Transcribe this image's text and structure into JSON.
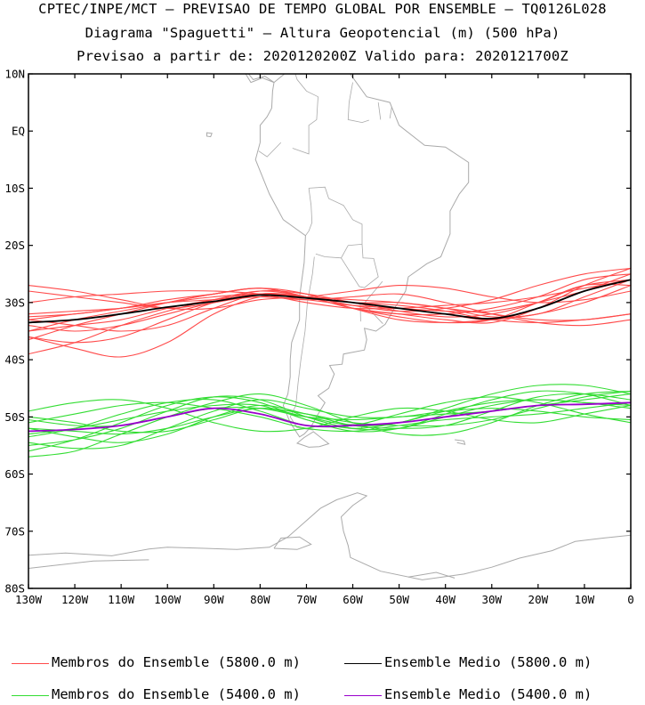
{
  "titles": {
    "line1": "CPTEC/INPE/MCT — PREVISAO DE TEMPO GLOBAL POR ENSEMBLE — TQ0126L028",
    "line2": "Diagrama \"Spaguetti\" — Altura Geopotencial (m) (500 hPa)",
    "line3": "Previsao a partir de: 2020120200Z  Valido para: 2020121700Z"
  },
  "legend": {
    "members_5800": "Membros do Ensemble (5800.0 m)",
    "mean_5800": "Ensemble Medio (5800.0 m)",
    "members_5400": "Membros do Ensemble (5400.0 m)",
    "mean_5400": "Ensemble Medio (5400.0 m)"
  },
  "colors": {
    "members_5800": "#ff4a4a",
    "mean_5800": "#000000",
    "members_5400": "#33dd33",
    "mean_5400": "#9900cc",
    "coastline": "#aaaaaa"
  },
  "chart_data": {
    "type": "line",
    "map": "South America / South Atlantic",
    "xlim": [
      -130,
      0
    ],
    "ylim": [
      -80,
      10
    ],
    "x_ticks": [
      {
        "v": -130,
        "label": "130W"
      },
      {
        "v": -120,
        "label": "120W"
      },
      {
        "v": -110,
        "label": "110W"
      },
      {
        "v": -100,
        "label": "100W"
      },
      {
        "v": -90,
        "label": "90W"
      },
      {
        "v": -80,
        "label": "80W"
      },
      {
        "v": -70,
        "label": "70W"
      },
      {
        "v": -60,
        "label": "60W"
      },
      {
        "v": -50,
        "label": "50W"
      },
      {
        "v": -40,
        "label": "40W"
      },
      {
        "v": -30,
        "label": "30W"
      },
      {
        "v": -20,
        "label": "20W"
      },
      {
        "v": -10,
        "label": "10W"
      },
      {
        "v": 0,
        "label": "0"
      }
    ],
    "y_ticks": [
      {
        "v": 10,
        "label": "10N"
      },
      {
        "v": 0,
        "label": "EQ"
      },
      {
        "v": -10,
        "label": "10S"
      },
      {
        "v": -20,
        "label": "20S"
      },
      {
        "v": -30,
        "label": "30S"
      },
      {
        "v": -40,
        "label": "40S"
      },
      {
        "v": -50,
        "label": "50S"
      },
      {
        "v": -60,
        "label": "60S"
      },
      {
        "v": -70,
        "label": "70S"
      },
      {
        "v": -80,
        "label": "80S"
      }
    ],
    "x": [
      -130,
      -120,
      -110,
      -100,
      -90,
      -80,
      -70,
      -60,
      -50,
      -40,
      -30,
      -20,
      -10,
      0
    ],
    "series": [
      {
        "name": "Ensemble Medio (5800.0 m)",
        "group": "mean_5800",
        "values": [
          -33.5,
          -33,
          -32,
          -30.8,
          -29.8,
          -28.7,
          -29.2,
          -30,
          -31,
          -32,
          -32.8,
          -31,
          -28,
          -26
        ]
      },
      {
        "name": "Ensemble Medio (5400.0 m)",
        "group": "mean_5400",
        "values": [
          -52.5,
          -52.2,
          -51.5,
          -50,
          -48.5,
          -49.5,
          -51.5,
          -51.5,
          -51,
          -50,
          -49,
          -48,
          -47.8,
          -47.5
        ]
      },
      {
        "group": "members_5800",
        "values": [
          -32,
          -31.5,
          -31,
          -30,
          -29,
          -28.5,
          -29,
          -30,
          -31,
          -32,
          -33,
          -31,
          -28,
          -25
        ]
      },
      {
        "group": "members_5800",
        "values": [
          -35,
          -34,
          -33,
          -31,
          -29.5,
          -28.5,
          -29,
          -31,
          -32,
          -33,
          -33.5,
          -31,
          -27,
          -24
        ]
      },
      {
        "group": "members_5800",
        "values": [
          -36,
          -37,
          -36,
          -33,
          -30,
          -28,
          -28.5,
          -30,
          -31.5,
          -32.5,
          -32,
          -30,
          -27,
          -26
        ]
      },
      {
        "group": "members_5800",
        "values": [
          -28,
          -29,
          -30,
          -31,
          -30,
          -28.5,
          -29,
          -29.5,
          -30,
          -31,
          -32,
          -33,
          -33,
          -32
        ]
      },
      {
        "group": "members_5800",
        "values": [
          -39,
          -37,
          -34,
          -31.5,
          -29.5,
          -28,
          -29,
          -31,
          -32,
          -32,
          -31,
          -29,
          -26,
          -25
        ]
      },
      {
        "group": "members_5800",
        "values": [
          -33,
          -32,
          -31,
          -29.5,
          -28.5,
          -27.5,
          -29,
          -31,
          -32.5,
          -33.5,
          -33,
          -30,
          -27,
          -27
        ]
      },
      {
        "group": "members_5800",
        "values": [
          -36,
          -38,
          -39.5,
          -37,
          -32,
          -29,
          -29,
          -30,
          -30.5,
          -31.5,
          -33,
          -33.5,
          -33,
          -32
        ]
      },
      {
        "group": "members_5800",
        "values": [
          -30,
          -29,
          -28.5,
          -28,
          -28,
          -28.5,
          -30,
          -31,
          -31,
          -30.5,
          -30,
          -29,
          -27.5,
          -26
        ]
      },
      {
        "group": "members_5800",
        "values": [
          -35,
          -33,
          -31.5,
          -30,
          -28.5,
          -27.5,
          -29,
          -30,
          -30,
          -31,
          -32.5,
          -32,
          -29,
          -26
        ]
      },
      {
        "group": "members_5800",
        "values": [
          -34,
          -35,
          -34,
          -32,
          -30,
          -29,
          -29.5,
          -30.5,
          -31,
          -31.5,
          -31.5,
          -30,
          -28,
          -26
        ]
      },
      {
        "group": "members_5800",
        "values": [
          -27,
          -28,
          -29.5,
          -31,
          -31,
          -29.5,
          -29,
          -28,
          -27,
          -27.5,
          -29,
          -30,
          -29.5,
          -28
        ]
      },
      {
        "group": "members_5800",
        "values": [
          -36.5,
          -34,
          -32,
          -30,
          -28.5,
          -27.5,
          -28.5,
          -31,
          -33,
          -33.5,
          -33,
          -32,
          -30,
          -27
        ]
      },
      {
        "group": "members_5800",
        "values": [
          -32.5,
          -32,
          -31,
          -30,
          -29.5,
          -29,
          -29.5,
          -29,
          -28.5,
          -30,
          -32,
          -33.5,
          -34,
          -33
        ]
      },
      {
        "group": "members_5800",
        "values": [
          -33,
          -34,
          -35,
          -34,
          -31,
          -28.5,
          -29,
          -30.5,
          -31.5,
          -31,
          -29.5,
          -27,
          -25,
          -24
        ]
      },
      {
        "group": "members_5400",
        "values": [
          -55,
          -54,
          -52,
          -49,
          -46.5,
          -47,
          -50,
          -52,
          -52,
          -50,
          -48,
          -47,
          -47.5,
          -48
        ]
      },
      {
        "group": "members_5400",
        "values": [
          -52,
          -53.5,
          -54.5,
          -53,
          -50,
          -48,
          -49.5,
          -51.5,
          -52,
          -51.5,
          -49,
          -46.5,
          -46,
          -47
        ]
      },
      {
        "group": "members_5400",
        "values": [
          -49,
          -47.5,
          -47,
          -48.5,
          -51,
          -52.5,
          -52,
          -50,
          -48.5,
          -49,
          -50.5,
          -51,
          -49.5,
          -48
        ]
      },
      {
        "group": "members_5400",
        "values": [
          -57,
          -56,
          -53,
          -50,
          -47.5,
          -46,
          -48,
          -51,
          -53,
          -53,
          -51,
          -48,
          -46,
          -45.5
        ]
      },
      {
        "group": "members_5400",
        "values": [
          -50,
          -51,
          -52.5,
          -52.5,
          -50.5,
          -48.5,
          -50,
          -51.5,
          -51,
          -48.5,
          -46,
          -44.5,
          -44.5,
          -46
        ]
      },
      {
        "group": "members_5400",
        "values": [
          -53,
          -52,
          -50.5,
          -49,
          -48,
          -48,
          -50.5,
          -52.5,
          -52,
          -49.5,
          -47,
          -45.5,
          -46,
          -48
        ]
      },
      {
        "group": "members_5400",
        "values": [
          -54.5,
          -55.5,
          -55,
          -52,
          -49,
          -47,
          -48.5,
          -50,
          -50,
          -49,
          -48.5,
          -49,
          -50,
          -50.5
        ]
      },
      {
        "group": "members_5400",
        "values": [
          -51,
          -49.5,
          -48,
          -47.5,
          -48.5,
          -50,
          -52,
          -52.5,
          -51.5,
          -50.5,
          -50,
          -49.5,
          -48.5,
          -47.5
        ]
      },
      {
        "group": "members_5400",
        "values": [
          -56,
          -54,
          -51,
          -48,
          -46.5,
          -47.5,
          -50.5,
          -52,
          -51,
          -49,
          -47.5,
          -47,
          -47.5,
          -48.5
        ]
      },
      {
        "group": "members_5400",
        "values": [
          -52,
          -52.5,
          -53,
          -52,
          -50,
          -48.5,
          -49.5,
          -51,
          -51.5,
          -51.5,
          -50.5,
          -48.5,
          -46.5,
          -45.5
        ]
      },
      {
        "group": "members_5400",
        "values": [
          -53.5,
          -52,
          -49.5,
          -47.5,
          -47,
          -49,
          -51.5,
          -51.5,
          -49.5,
          -47.5,
          -46.5,
          -47.5,
          -49.5,
          -51
        ]
      },
      {
        "group": "members_5400",
        "values": [
          -50.5,
          -51.5,
          -51.5,
          -50,
          -48.5,
          -48.5,
          -50,
          -50.5,
          -50,
          -49.5,
          -49,
          -48,
          -47,
          -46
        ]
      }
    ]
  }
}
